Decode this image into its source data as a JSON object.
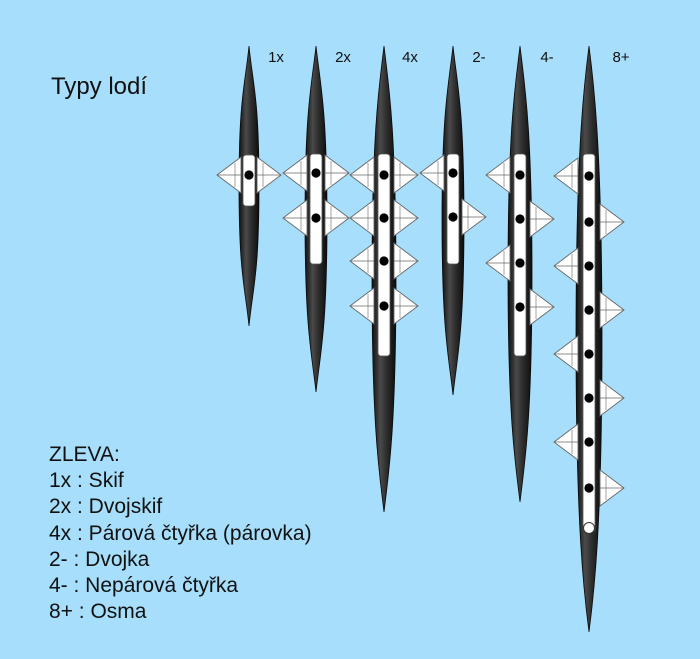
{
  "title": "Typy lodí",
  "legend": {
    "heading": "ZLEVA:",
    "items": [
      "1x : Skif",
      "2x : Dvojskif",
      "4x : Párová čtyřka (párovka)",
      "2- : Dvojka",
      "4- : Nepárová čtyřka",
      "8+ : Osma"
    ]
  },
  "boats": [
    {
      "label": "1x",
      "rowers": 1,
      "sculling": true,
      "rigger_sides": [
        "both"
      ]
    },
    {
      "label": "2x",
      "rowers": 2,
      "sculling": true,
      "rigger_sides": [
        "both",
        "both"
      ]
    },
    {
      "label": "4x",
      "rowers": 4,
      "sculling": true,
      "rigger_sides": [
        "both",
        "both",
        "both",
        "both"
      ]
    },
    {
      "label": "2-",
      "rowers": 2,
      "sculling": false,
      "rigger_sides": [
        "left",
        "right"
      ]
    },
    {
      "label": "4-",
      "rowers": 4,
      "sculling": false,
      "rigger_sides": [
        "left",
        "right",
        "left",
        "right"
      ]
    },
    {
      "label": "8+",
      "rowers": 8,
      "sculling": false,
      "coxed": true,
      "rigger_sides": [
        "left",
        "right",
        "left",
        "right",
        "left",
        "right",
        "left",
        "right"
      ]
    }
  ],
  "colors": {
    "background": "#a6defb",
    "hull": "#3a3a3a",
    "deck": "#ffffff",
    "seat": "#000000",
    "rigger_fill": "#ffffff",
    "rigger_stroke": "#666666"
  }
}
